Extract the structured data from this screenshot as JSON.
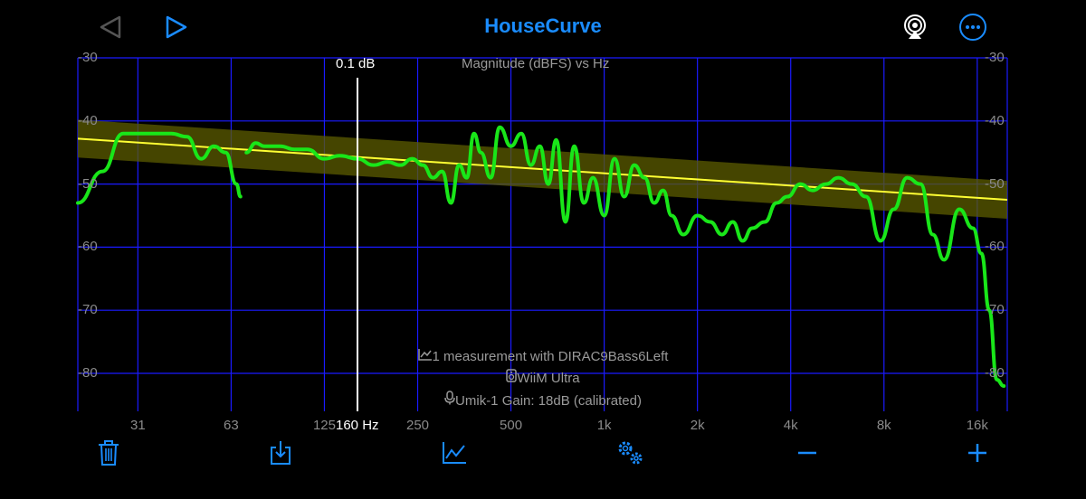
{
  "header": {
    "title": "HouseCurve",
    "back_icon": "triangle-left-icon",
    "play_icon": "triangle-right-icon",
    "airplay_icon": "airplay-icon",
    "more_icon": "ellipsis-circle-icon"
  },
  "plot": {
    "title": "Magnitude (dBFS) vs Hz",
    "y_ticks_left": [
      "-30",
      "-40",
      "-50",
      "-60",
      "-70",
      "-80"
    ],
    "y_ticks_right": [
      "-30",
      "-40",
      "-50",
      "-60",
      "-70",
      "-80"
    ],
    "x_ticks": [
      "31",
      "63",
      "125",
      "250",
      "500",
      "1k",
      "2k",
      "4k",
      "8k",
      "16k"
    ],
    "cursor_value": "0.1 dB",
    "cursor_freq": "160 Hz"
  },
  "info": {
    "measurement": "1 measurement with DIRAC9Bass6Left",
    "device": "WiiM Ultra",
    "mic": "Umik-1  Gain: 18dB (calibrated)"
  },
  "toolbar": {
    "items": [
      "trash-icon",
      "download-icon",
      "chart-icon",
      "settings-gears-icon",
      "minus-icon",
      "plus-icon"
    ]
  },
  "colors": {
    "accent": "#1a8cff",
    "grid": "#1a1aff",
    "measurement": "#19e619",
    "target": "#ffff33",
    "band": "#5c5c00"
  },
  "chart_data": {
    "type": "line",
    "title": "Magnitude (dBFS) vs Hz",
    "xscale": "log",
    "xlim": [
      20,
      20000
    ],
    "ylim": [
      -82,
      -30
    ],
    "series": [
      {
        "name": "",
        "color": "#19e619",
        "x": [
          20,
          24,
          28,
          32,
          40,
          45,
          50,
          55,
          60,
          65,
          67,
          70,
          75,
          80,
          90,
          100,
          110,
          125,
          140,
          160,
          180,
          200,
          220,
          240,
          260,
          280,
          300,
          320,
          340,
          360,
          380,
          400,
          430,
          460,
          500,
          540,
          580,
          620,
          660,
          700,
          750,
          800,
          860,
          920,
          1000,
          1080,
          1160,
          1250,
          1350,
          1450,
          1550,
          1650,
          1800,
          2000,
          2200,
          2400,
          2600,
          2800,
          3000,
          3300,
          3600,
          3900,
          4300,
          4700,
          5200,
          5700,
          6300,
          7000,
          7800,
          8600,
          9500,
          10500,
          11500,
          12500,
          14000,
          15500,
          16500,
          17500,
          18500,
          19500
        ],
        "y": [
          -53,
          -48,
          -42,
          -42,
          -42,
          -42.5,
          -46,
          -44,
          -45,
          -50,
          -52,
          -45,
          -43.5,
          -44,
          -44,
          -44.5,
          -44.5,
          -46,
          -45.5,
          -46,
          -47,
          -46.5,
          -47,
          -46,
          -47,
          -49,
          -48,
          -53,
          -47,
          -49,
          -42,
          -45,
          -49,
          -41,
          -44,
          -42,
          -47,
          -44,
          -50,
          -43,
          -56,
          -44,
          -53,
          -49,
          -55,
          -46,
          -52,
          -47,
          -49,
          -53,
          -51,
          -55,
          -58,
          -55,
          -56,
          -58,
          -56,
          -59,
          -57,
          -56,
          -53,
          -52,
          -50,
          -51,
          -50,
          -49,
          -50,
          -52,
          -59,
          -54,
          -49,
          -50,
          -58,
          -62,
          -54,
          -57,
          -61,
          -70,
          -81,
          -82
        ]
      },
      {
        "name": "",
        "color": "#ffff33",
        "x": [
          20,
          20000
        ],
        "y": [
          -42.8,
          -52.5
        ]
      }
    ],
    "band": {
      "x": [
        20,
        20000
      ],
      "upper": [
        -39.8,
        -49.5
      ],
      "lower": [
        -45.8,
        -55.5
      ]
    },
    "grid": true
  }
}
